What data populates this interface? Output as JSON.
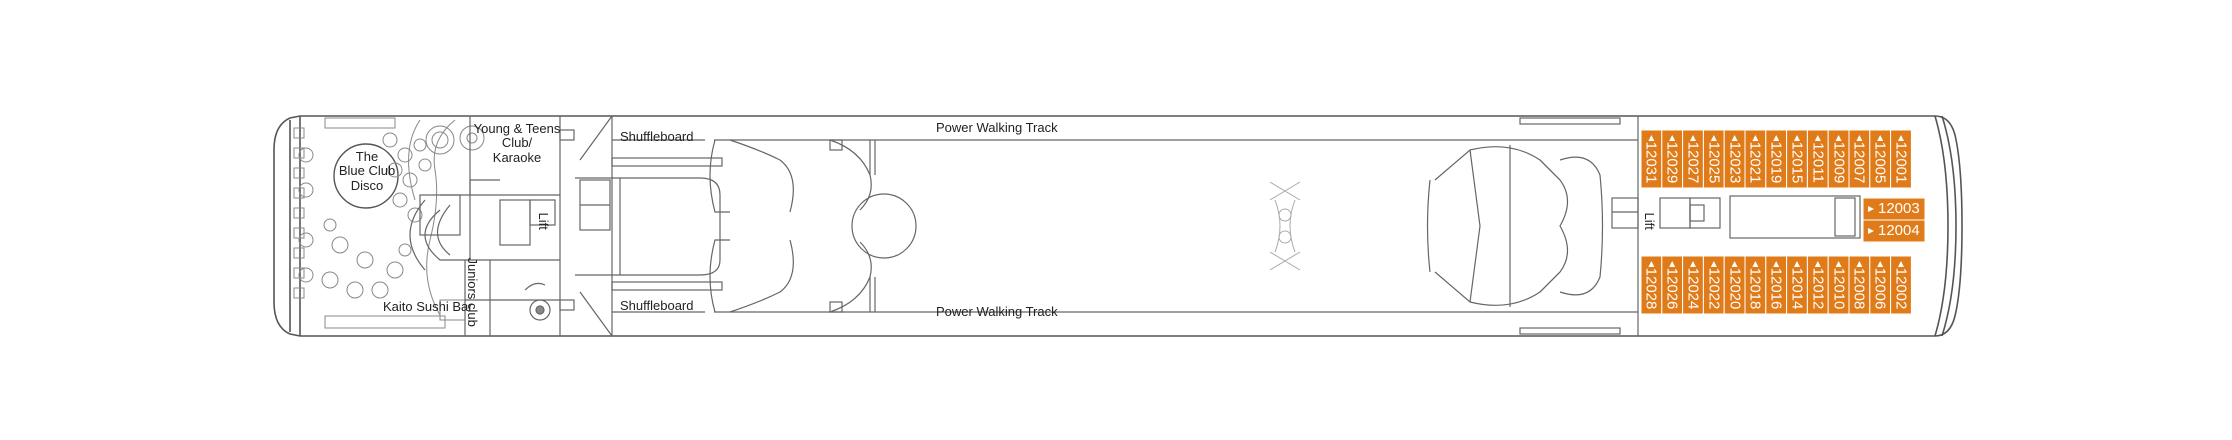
{
  "colors": {
    "cabin_fill": "#e07b1a",
    "cabin_stroke": "#ffffff",
    "outline": "#555555",
    "detail": "#999999"
  },
  "labels": {
    "blue_club": [
      "The",
      "Blue Club",
      "Disco"
    ],
    "young_teens": [
      "Young & Teens",
      "Club/",
      "Karaoke"
    ],
    "kaito": "Kaito Sushi Bar",
    "juniors": "Juniors club",
    "lift_fwd": "Lift",
    "lift_aft": "Lift",
    "shuffleboard_top": "Shuffleboard",
    "shuffleboard_bottom": "Shuffleboard",
    "walking_top": "Power Walking Track",
    "walking_bottom": "Power Walking Track"
  },
  "cabins": {
    "top_row": [
      "12031",
      "12029",
      "12027",
      "12025",
      "12023",
      "12021",
      "12019",
      "12015",
      "12011",
      "12009",
      "12007",
      "12005",
      "12001"
    ],
    "bottom_row": [
      "12028",
      "12026",
      "12024",
      "12022",
      "12020",
      "12018",
      "12016",
      "12014",
      "12012",
      "12010",
      "12008",
      "12006",
      "12002"
    ],
    "side": [
      "12003",
      "12004"
    ]
  }
}
